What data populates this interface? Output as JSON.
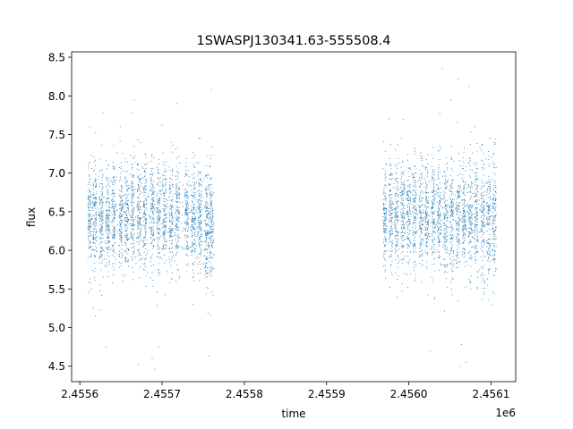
{
  "chart_data": {
    "type": "scatter",
    "title": "1SWASPJ130341.63-555508.4",
    "xlabel": "time",
    "ylabel": "flux",
    "x_offset_label": "1e6",
    "xlim": [
      2455590,
      2456130
    ],
    "ylim": [
      4.3,
      8.57
    ],
    "x_ticks": [
      2455600,
      2455700,
      2455800,
      2455900,
      2456000,
      2456100
    ],
    "x_tick_labels": [
      "2.4556",
      "2.4557",
      "2.4558",
      "2.4559",
      "2.4560",
      "2.4561"
    ],
    "y_ticks": [
      4.5,
      5.0,
      5.5,
      6.0,
      6.5,
      7.0,
      7.5,
      8.0,
      8.5
    ],
    "y_tick_labels": [
      "4.5",
      "5.0",
      "5.5",
      "6.0",
      "6.5",
      "7.0",
      "7.5",
      "8.0",
      "8.5"
    ],
    "grid": false,
    "marker_color": "#1f77b4",
    "series": [
      {
        "segments": [
          {
            "x_range": [
              2455612,
              2455660
            ],
            "flux_median": 6.4,
            "flux_spread": 0.35
          },
          {
            "x_range": [
              2455660,
              2455730
            ],
            "flux_median": 6.45,
            "flux_spread": 0.35
          },
          {
            "x_range": [
              2455730,
              2455763
            ],
            "flux_median": 6.35,
            "flux_spread": 0.35
          },
          {
            "x_range": [
              2455970,
              2456040
            ],
            "flux_median": 6.45,
            "flux_spread": 0.35
          },
          {
            "x_range": [
              2456040,
              2456106
            ],
            "flux_median": 6.4,
            "flux_spread": 0.38
          }
        ],
        "observing_nights_x": [
          2455612,
          2455618,
          2455626,
          2455634,
          2455641,
          2455650,
          2455657,
          2455664,
          2455672,
          2455679,
          2455688,
          2455696,
          2455703,
          2455711,
          2455719,
          2455730,
          2455738,
          2455746,
          2455755,
          2455760,
          2455971,
          2455978,
          2455985,
          2455993,
          2456000,
          2456007,
          2456015,
          2456022,
          2456030,
          2456037,
          2456045,
          2456052,
          2456060,
          2456067,
          2456075,
          2456082,
          2456090,
          2456097,
          2456104
        ],
        "outliers": [
          {
            "x": 2455612,
            "y": 7.6
          },
          {
            "x": 2455619,
            "y": 5.15
          },
          {
            "x": 2455628,
            "y": 7.78
          },
          {
            "x": 2455632,
            "y": 4.75
          },
          {
            "x": 2455649,
            "y": 7.6
          },
          {
            "x": 2455664,
            "y": 7.78
          },
          {
            "x": 2455666,
            "y": 7.95
          },
          {
            "x": 2455671,
            "y": 4.52
          },
          {
            "x": 2455688,
            "y": 4.6
          },
          {
            "x": 2455691,
            "y": 4.46
          },
          {
            "x": 2455696,
            "y": 4.75
          },
          {
            "x": 2455700,
            "y": 7.62
          },
          {
            "x": 2455718,
            "y": 7.9
          },
          {
            "x": 2455745,
            "y": 7.45
          },
          {
            "x": 2455760,
            "y": 8.08
          },
          {
            "x": 2455757,
            "y": 4.63
          },
          {
            "x": 2455976,
            "y": 7.7
          },
          {
            "x": 2455991,
            "y": 7.45
          },
          {
            "x": 2456016,
            "y": 7.0
          },
          {
            "x": 2456026,
            "y": 4.7
          },
          {
            "x": 2456029,
            "y": 7.33
          },
          {
            "x": 2456041,
            "y": 8.35
          },
          {
            "x": 2456051,
            "y": 7.95
          },
          {
            "x": 2456060,
            "y": 8.22
          },
          {
            "x": 2456062,
            "y": 4.5
          },
          {
            "x": 2456064,
            "y": 4.78
          },
          {
            "x": 2456070,
            "y": 4.55
          },
          {
            "x": 2456073,
            "y": 8.12
          },
          {
            "x": 2456080,
            "y": 7.6
          },
          {
            "x": 2456094,
            "y": 7.18
          }
        ]
      }
    ]
  }
}
